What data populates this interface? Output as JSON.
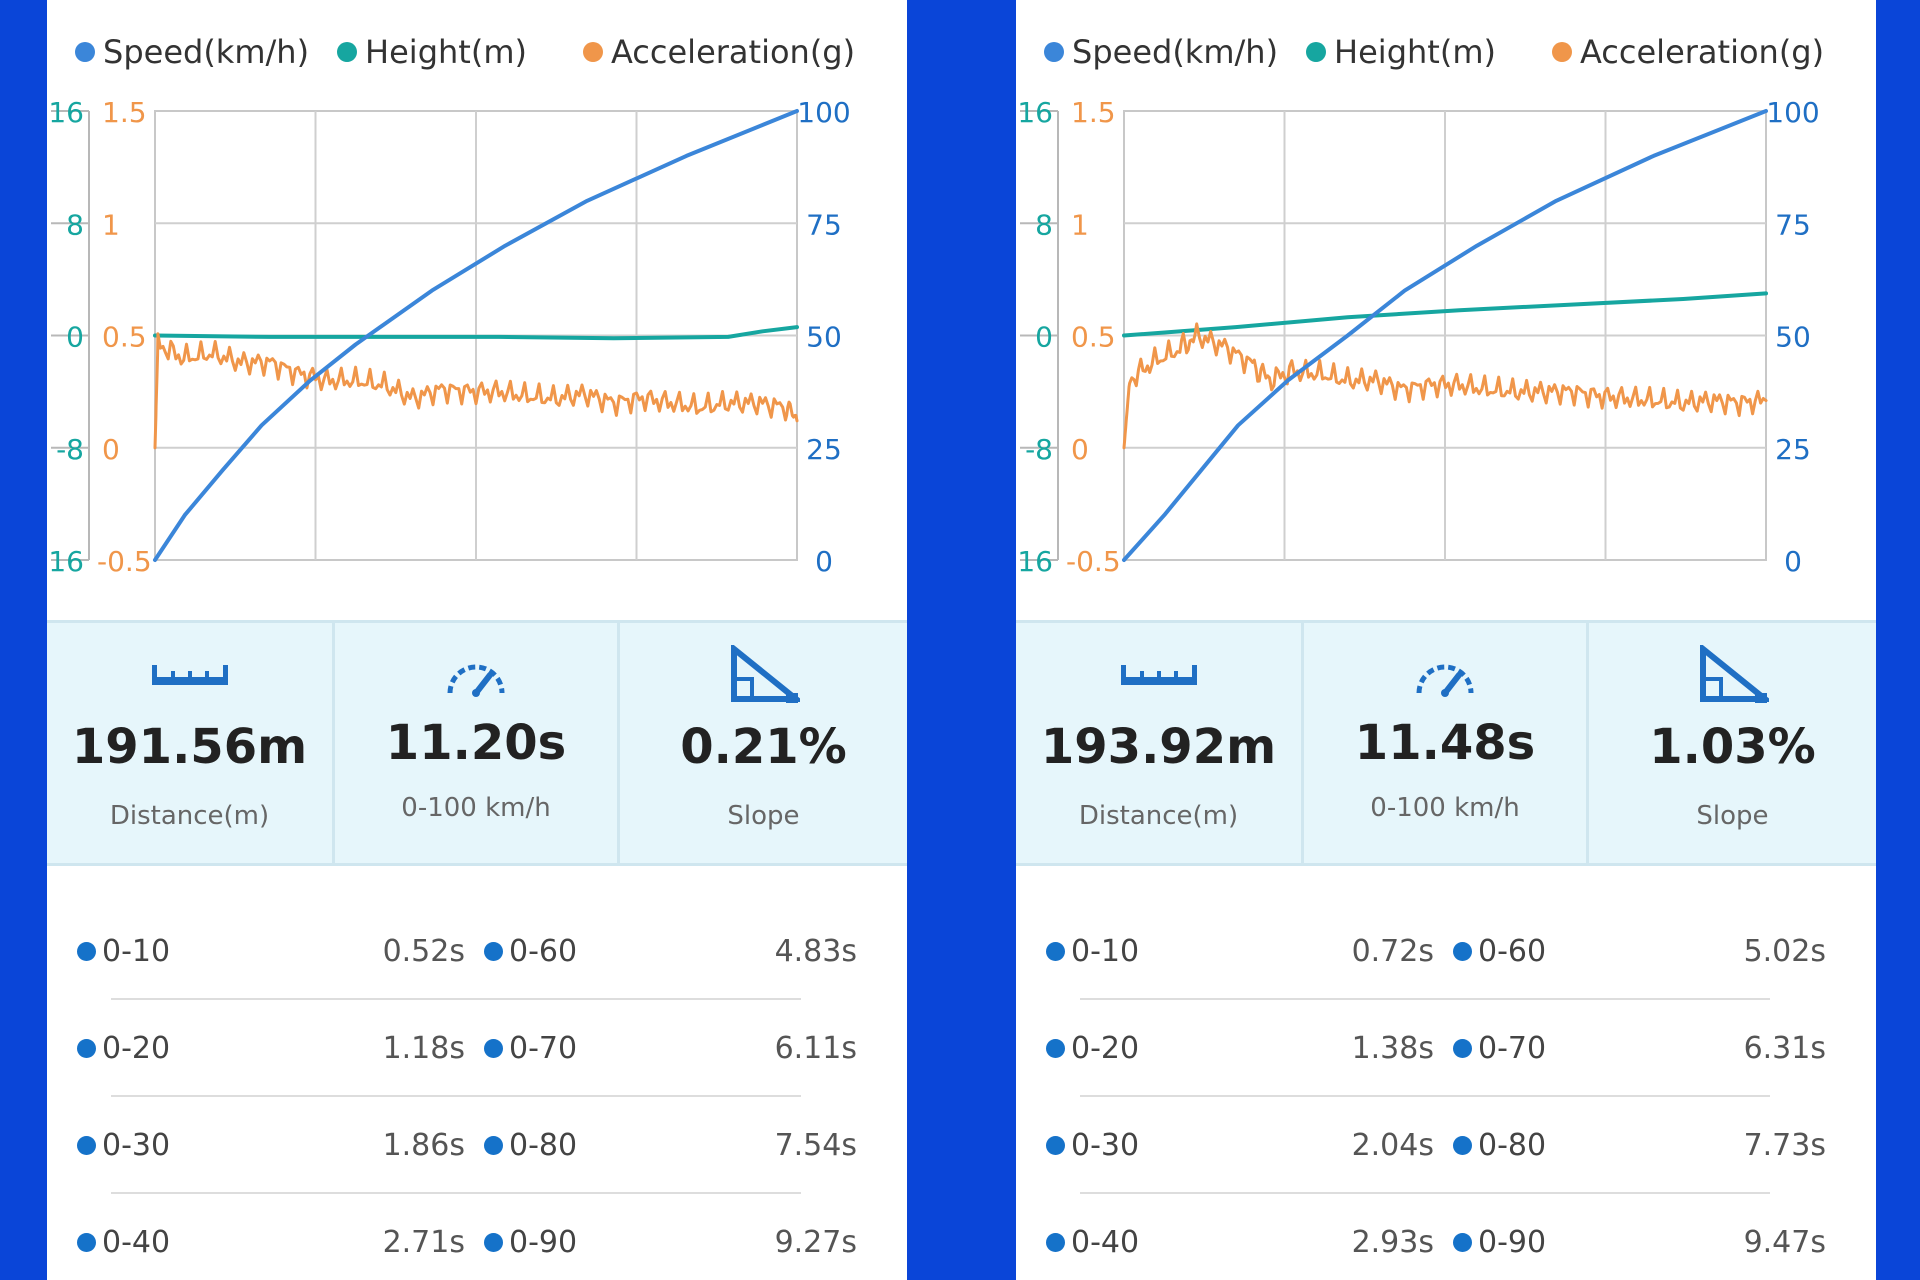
{
  "legend": [
    {
      "label": "Speed(km/h)",
      "color": "#3b86d9"
    },
    {
      "label": "Height(m)",
      "color": "#16a6a0"
    },
    {
      "label": "Acceleration(g)",
      "color": "#f0964a"
    }
  ],
  "axes": {
    "height_ticks": [
      "16",
      "8",
      "0",
      "-8",
      "-16"
    ],
    "accel_ticks": [
      "1.5",
      "1",
      "0.5",
      "0",
      "-0.5"
    ],
    "speed_ticks": [
      "100",
      "75",
      "50",
      "25",
      "0"
    ]
  },
  "panels": [
    {
      "stats": {
        "distance_value": "191.56m",
        "distance_label": "Distance(m)",
        "time_value": "11.20s",
        "time_label": "0-100 km/h",
        "slope_value": "0.21%",
        "slope_label": "Slope"
      },
      "times": [
        {
          "l_label": "0-10",
          "l_value": "0.52s",
          "r_label": "0-60",
          "r_value": "4.83s"
        },
        {
          "l_label": "0-20",
          "l_value": "1.18s",
          "r_label": "0-70",
          "r_value": "6.11s"
        },
        {
          "l_label": "0-30",
          "l_value": "1.86s",
          "r_label": "0-80",
          "r_value": "7.54s"
        },
        {
          "l_label": "0-40",
          "l_value": "2.71s",
          "r_label": "0-90",
          "r_value": "9.27s"
        }
      ]
    },
    {
      "stats": {
        "distance_value": "193.92m",
        "distance_label": "Distance(m)",
        "time_value": "11.48s",
        "time_label": "0-100 km/h",
        "slope_value": "1.03%",
        "slope_label": "Slope"
      },
      "times": [
        {
          "l_label": "0-10",
          "l_value": "0.72s",
          "r_label": "0-60",
          "r_value": "5.02s"
        },
        {
          "l_label": "0-20",
          "l_value": "1.38s",
          "r_label": "0-70",
          "r_value": "6.31s"
        },
        {
          "l_label": "0-30",
          "l_value": "2.04s",
          "r_label": "0-80",
          "r_value": "7.73s"
        },
        {
          "l_label": "0-40",
          "l_value": "2.93s",
          "r_label": "0-90",
          "r_value": "9.47s"
        }
      ]
    }
  ],
  "chart_data": [
    {
      "type": "line",
      "xlim": [
        0,
        11.2
      ],
      "grid": true,
      "axes_ranges": {
        "height": [
          -16,
          16
        ],
        "acceleration": [
          -0.5,
          1.5
        ],
        "speed": [
          0,
          100
        ]
      },
      "series": [
        {
          "name": "Speed(km/h)",
          "axis": "speed",
          "x": [
            0,
            0.52,
            1.18,
            1.86,
            2.71,
            3.5,
            4.83,
            6.11,
            7.54,
            9.27,
            11.2
          ],
          "y": [
            0,
            10,
            20,
            30,
            40,
            48,
            60,
            70,
            80,
            90,
            100
          ]
        },
        {
          "name": "Height(m)",
          "axis": "height",
          "x": [
            0,
            2,
            4,
            6,
            8,
            10,
            10.6,
            11.2
          ],
          "y": [
            0,
            -0.1,
            -0.1,
            -0.1,
            -0.2,
            -0.1,
            0.3,
            0.6
          ]
        },
        {
          "name": "Acceleration(g)",
          "axis": "acceleration",
          "x": [
            0,
            0.05,
            0.5,
            1,
            1.5,
            2,
            2.5,
            3,
            3.5,
            4,
            4.5,
            5,
            5.5,
            6,
            6.5,
            7,
            7.5,
            8,
            8.5,
            9,
            9.5,
            10,
            10.5,
            11,
            11.2
          ],
          "y": [
            0,
            0.46,
            0.4,
            0.42,
            0.38,
            0.38,
            0.33,
            0.3,
            0.3,
            0.28,
            0.22,
            0.26,
            0.25,
            0.25,
            0.23,
            0.22,
            0.24,
            0.2,
            0.22,
            0.2,
            0.18,
            0.2,
            0.2,
            0.18,
            0.12
          ]
        }
      ]
    },
    {
      "type": "line",
      "xlim": [
        0,
        11.48
      ],
      "grid": true,
      "axes_ranges": {
        "height": [
          -16,
          16
        ],
        "acceleration": [
          -0.5,
          1.5
        ],
        "speed": [
          0,
          100
        ]
      },
      "series": [
        {
          "name": "Speed(km/h)",
          "axis": "speed",
          "x": [
            0,
            0.72,
            1.38,
            2.04,
            2.93,
            4.0,
            5.02,
            6.31,
            7.73,
            9.47,
            11.48
          ],
          "y": [
            0,
            10,
            20,
            30,
            40,
            50,
            60,
            70,
            80,
            90,
            100
          ]
        },
        {
          "name": "Height(m)",
          "axis": "height",
          "x": [
            0,
            2,
            4,
            6,
            8,
            10,
            11.48
          ],
          "y": [
            0,
            0.6,
            1.3,
            1.8,
            2.2,
            2.6,
            3.0
          ]
        },
        {
          "name": "Acceleration(g)",
          "axis": "acceleration",
          "x": [
            0,
            0.1,
            0.5,
            1,
            1.3,
            1.8,
            2.3,
            2.6,
            3,
            3.5,
            4,
            4.5,
            5,
            5.5,
            6,
            6.5,
            7,
            7.5,
            8,
            8.5,
            9,
            9.5,
            10,
            10.5,
            11,
            11.48
          ],
          "y": [
            0,
            0.3,
            0.38,
            0.44,
            0.5,
            0.45,
            0.37,
            0.3,
            0.34,
            0.33,
            0.3,
            0.3,
            0.26,
            0.28,
            0.28,
            0.26,
            0.25,
            0.25,
            0.25,
            0.23,
            0.22,
            0.21,
            0.2,
            0.21,
            0.2,
            0.21
          ]
        }
      ]
    }
  ]
}
